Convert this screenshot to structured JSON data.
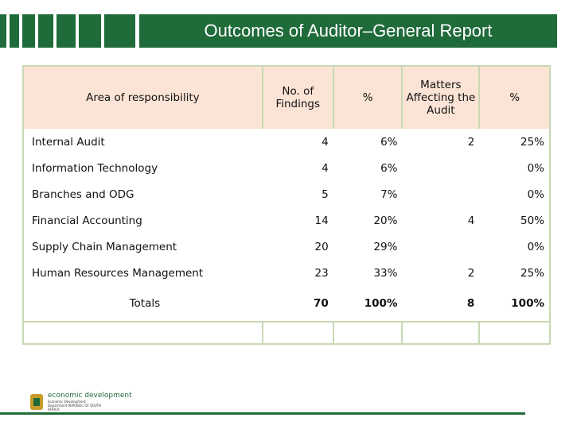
{
  "header": {
    "title": "Outcomes of Auditor–General Report"
  },
  "table": {
    "columns": [
      "Area of responsibility",
      "No. of Findings",
      "%",
      "Matters Affecting the Audit",
      "%"
    ],
    "rows": [
      [
        "Internal Audit",
        "4",
        "6%",
        "2",
        "25%"
      ],
      [
        "Information Technology",
        "4",
        "6%",
        "",
        "0%"
      ],
      [
        "Branches and ODG",
        "5",
        "7%",
        "",
        "0%"
      ],
      [
        "Financial Accounting",
        "14",
        "20%",
        "4",
        "50%"
      ],
      [
        "Supply  Chain Management",
        "20",
        "29%",
        "",
        "0%"
      ],
      [
        "Human Resources Management",
        "23",
        "33%",
        "2",
        "25%"
      ]
    ],
    "totals": [
      "Totals",
      "70",
      "100%",
      "8",
      "100%"
    ]
  },
  "footer": {
    "logo_text": "economic development",
    "logo_small": "Economic Development Department REPUBLIC OF SOUTH AFRICA"
  }
}
